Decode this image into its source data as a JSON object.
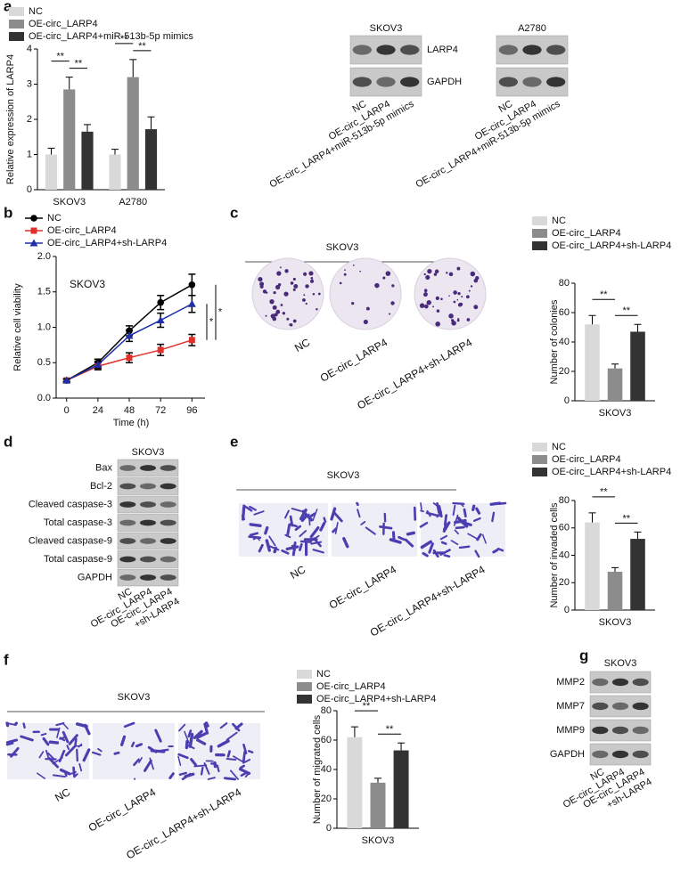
{
  "panel_letters": [
    "a",
    "b",
    "c",
    "d",
    "e",
    "f",
    "g"
  ],
  "chart_data": [
    {
      "type": "bar",
      "ylabel": "Relative expression of LARP4",
      "categories": [
        "SKOV3",
        "A2780"
      ],
      "series": [
        {
          "name": "NC",
          "color": "#d9d9d9",
          "values": [
            1.0,
            1.0
          ],
          "errors": [
            0.18,
            0.15
          ]
        },
        {
          "name": "OE-circ_LARP4",
          "color": "#8c8c8c",
          "values": [
            2.85,
            3.2
          ],
          "errors": [
            0.35,
            0.5
          ]
        },
        {
          "name": "OE-circ_LARP4+miR-513b-5p mimics",
          "color": "#333333",
          "values": [
            1.65,
            1.72
          ],
          "errors": [
            0.2,
            0.35
          ]
        }
      ],
      "ylim": [
        0,
        4
      ],
      "yticks": [
        0,
        1,
        2,
        3,
        4
      ],
      "significance": [
        {
          "label": "**",
          "category": 0,
          "between": [
            0,
            1
          ]
        },
        {
          "label": "**",
          "category": 0,
          "between": [
            1,
            2
          ]
        },
        {
          "label": "**",
          "category": 1,
          "between": [
            0,
            1
          ]
        },
        {
          "label": "**",
          "category": 1,
          "between": [
            1,
            2
          ]
        }
      ]
    },
    {
      "type": "line",
      "ylabel": "Relative cell viability",
      "xlabel": "Time (h)",
      "annotation": "SKOV3",
      "x": [
        0,
        24,
        48,
        72,
        96
      ],
      "series": [
        {
          "name": "NC",
          "color": "#000000",
          "marker": "circle",
          "values": [
            0.25,
            0.5,
            0.95,
            1.35,
            1.6
          ],
          "errors": [
            0.02,
            0.05,
            0.07,
            0.1,
            0.15
          ]
        },
        {
          "name": "OE-circ_LARP4",
          "color": "#e0302a",
          "marker": "square",
          "values": [
            0.25,
            0.45,
            0.57,
            0.68,
            0.82
          ],
          "errors": [
            0.02,
            0.05,
            0.07,
            0.08,
            0.08
          ]
        },
        {
          "name": "OE-circ_LARP4+sh-LARP4",
          "color": "#1f2fa8",
          "marker": "triangle",
          "values": [
            0.25,
            0.47,
            0.88,
            1.1,
            1.33
          ],
          "errors": [
            0.02,
            0.05,
            0.08,
            0.1,
            0.12
          ]
        }
      ],
      "xlim": [
        -8,
        106
      ],
      "xticks": [
        0,
        24,
        48,
        72,
        96
      ],
      "ylim": [
        0,
        2
      ],
      "yticks": [
        {
          "value": 0,
          "label": "0.0"
        },
        {
          "value": 0.5,
          "label": "0.5"
        },
        {
          "value": 1,
          "label": "1.0"
        },
        {
          "value": 1.5,
          "label": "1.5"
        },
        {
          "value": 2,
          "label": "2.0"
        }
      ],
      "significance": [
        {
          "label": "*",
          "between": [
            0,
            1
          ]
        },
        {
          "label": "*",
          "between": [
            2,
            1
          ]
        }
      ]
    },
    {
      "type": "bar",
      "ylabel": "Number of colonies",
      "categories": [
        "SKOV3"
      ],
      "series": [
        {
          "name": "NC",
          "color": "#d9d9d9",
          "values": [
            52
          ],
          "errors": [
            6
          ]
        },
        {
          "name": "OE-circ_LARP4",
          "color": "#8c8c8c",
          "values": [
            22
          ],
          "errors": [
            3
          ]
        },
        {
          "name": "OE-circ_LARP4+sh-LARP4",
          "color": "#333333",
          "values": [
            47
          ],
          "errors": [
            5
          ]
        }
      ],
      "ylim": [
        0,
        80
      ],
      "yticks": [
        0,
        20,
        40,
        60,
        80
      ],
      "significance": [
        {
          "label": "**",
          "category": 0,
          "between": [
            0,
            1
          ]
        },
        {
          "label": "**",
          "category": 0,
          "between": [
            1,
            2
          ]
        }
      ]
    },
    {
      "type": "bar",
      "ylabel": "Number of invaded cells",
      "categories": [
        "SKOV3"
      ],
      "series": [
        {
          "name": "NC",
          "color": "#d9d9d9",
          "values": [
            64
          ],
          "errors": [
            7
          ]
        },
        {
          "name": "OE-circ_LARP4",
          "color": "#8c8c8c",
          "values": [
            28
          ],
          "errors": [
            3
          ]
        },
        {
          "name": "OE-circ_LARP4+sh-LARP4",
          "color": "#333333",
          "values": [
            52
          ],
          "errors": [
            5
          ]
        }
      ],
      "ylim": [
        0,
        80
      ],
      "yticks": [
        0,
        20,
        40,
        60,
        80
      ],
      "significance": [
        {
          "label": "**",
          "category": 0,
          "between": [
            0,
            1
          ]
        },
        {
          "label": "**",
          "category": 0,
          "between": [
            1,
            2
          ]
        }
      ]
    },
    {
      "type": "bar",
      "ylabel": "Number of migrated cells",
      "categories": [
        "SKOV3"
      ],
      "series": [
        {
          "name": "NC",
          "color": "#d9d9d9",
          "values": [
            62
          ],
          "errors": [
            7
          ]
        },
        {
          "name": "OE-circ_LARP4",
          "color": "#8c8c8c",
          "values": [
            31
          ],
          "errors": [
            3
          ]
        },
        {
          "name": "OE-circ_LARP4+sh-LARP4",
          "color": "#333333",
          "values": [
            53
          ],
          "errors": [
            5
          ]
        }
      ],
      "ylim": [
        0,
        80
      ],
      "yticks": [
        0,
        20,
        40,
        60,
        80
      ],
      "significance": [
        {
          "label": "**",
          "category": 0,
          "between": [
            0,
            1
          ]
        },
        {
          "label": "**",
          "category": 0,
          "between": [
            1,
            2
          ]
        }
      ]
    }
  ],
  "blots": [
    {
      "cell_lines": [
        "SKOV3",
        "A2780"
      ],
      "proteins": [
        "LARP4",
        "GAPDH"
      ],
      "lanes": [
        [
          "NC"
        ],
        [
          "OE-circ_LARP4"
        ],
        [
          "OE-circ_LARP4+miR-513b-5p mimics"
        ]
      ]
    },
    {
      "cell_lines": [
        "SKOV3"
      ],
      "proteins": [
        "Bax",
        "Bcl-2",
        "Cleaved caspase-3",
        "Total caspase-3",
        "Cleaved caspase-9",
        "Total caspase-9",
        "GAPDH"
      ],
      "lanes": [
        [
          "NC"
        ],
        [
          "OE-circ_LARP4"
        ],
        [
          "OE-circ_LARP4",
          "+sh-LARP4"
        ]
      ]
    },
    {
      "cell_lines": [
        "SKOV3"
      ],
      "proteins": [
        "MMP2",
        "MMP7",
        "MMP9",
        "GAPDH"
      ],
      "lanes": [
        [
          "NC"
        ],
        [
          "OE-circ_LARP4"
        ],
        [
          "OE-circ_LARP4",
          "+sh-LARP4"
        ]
      ]
    }
  ],
  "images": [
    {
      "title": "SKOV3",
      "groups": [
        "NC",
        "OE-circ_LARP4",
        "OE-circ_LARP4+sh-LARP4"
      ]
    },
    {
      "title": "SKOV3",
      "groups": [
        "NC",
        "OE-circ_LARP4",
        "OE-circ_LARP4+sh-LARP4"
      ]
    },
    {
      "title": "SKOV3",
      "groups": [
        "NC",
        "OE-circ_LARP4",
        "OE-circ_LARP4+sh-LARP4"
      ]
    }
  ]
}
